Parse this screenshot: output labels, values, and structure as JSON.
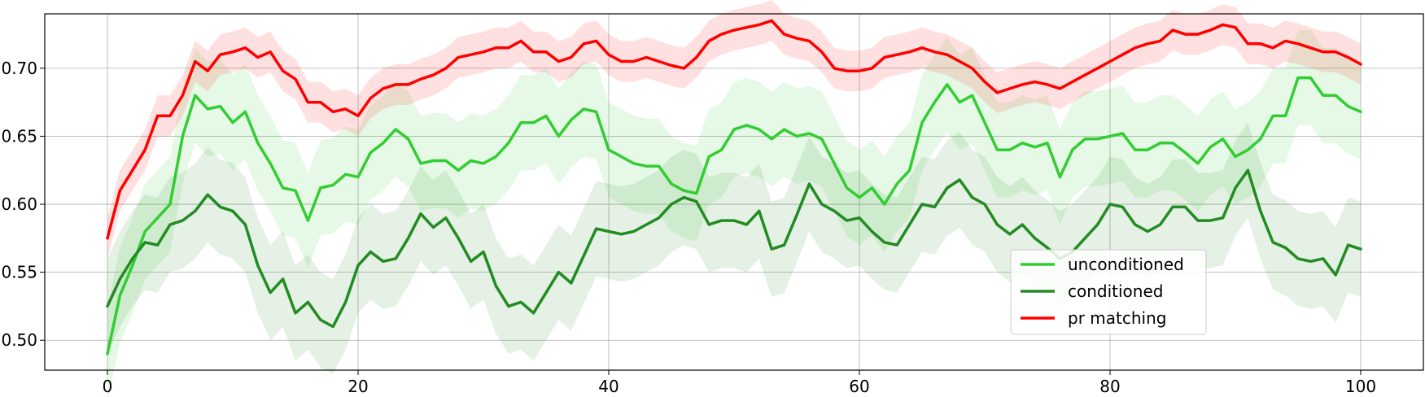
{
  "chart_data": {
    "type": "line",
    "title": "",
    "xlabel": "",
    "ylabel": "",
    "xlim": [
      -5,
      105
    ],
    "ylim": [
      0.478,
      0.74
    ],
    "grid": true,
    "legend_position": "lower-right",
    "xticks": [
      0,
      20,
      40,
      60,
      80,
      100
    ],
    "yticks": [
      0.5,
      0.55,
      0.6,
      0.65,
      0.7
    ],
    "xtick_labels": [
      "0",
      "20",
      "40",
      "60",
      "80",
      "100"
    ],
    "ytick_labels": [
      "0.50",
      "0.55",
      "0.60",
      "0.65",
      "0.70"
    ],
    "series": [
      {
        "name": "unconditioned",
        "color": "#32cd32",
        "band_width": 0.035,
        "points": [
          [
            0,
            0.49
          ],
          [
            1,
            0.533
          ],
          [
            2,
            0.555
          ],
          [
            3,
            0.58
          ],
          [
            4,
            0.59
          ],
          [
            5,
            0.6
          ],
          [
            6,
            0.65
          ],
          [
            7,
            0.68
          ],
          [
            8,
            0.67
          ],
          [
            9,
            0.672
          ],
          [
            10,
            0.66
          ],
          [
            11,
            0.668
          ],
          [
            12,
            0.645
          ],
          [
            13,
            0.63
          ],
          [
            14,
            0.612
          ],
          [
            15,
            0.61
          ],
          [
            16,
            0.588
          ],
          [
            17,
            0.612
          ],
          [
            18,
            0.614
          ],
          [
            19,
            0.622
          ],
          [
            20,
            0.62
          ],
          [
            21,
            0.638
          ],
          [
            22,
            0.645
          ],
          [
            23,
            0.655
          ],
          [
            24,
            0.648
          ],
          [
            25,
            0.63
          ],
          [
            26,
            0.632
          ],
          [
            27,
            0.632
          ],
          [
            28,
            0.625
          ],
          [
            29,
            0.632
          ],
          [
            30,
            0.63
          ],
          [
            31,
            0.635
          ],
          [
            32,
            0.645
          ],
          [
            33,
            0.66
          ],
          [
            34,
            0.66
          ],
          [
            35,
            0.665
          ],
          [
            36,
            0.65
          ],
          [
            37,
            0.662
          ],
          [
            38,
            0.67
          ],
          [
            39,
            0.668
          ],
          [
            40,
            0.64
          ],
          [
            41,
            0.635
          ],
          [
            42,
            0.63
          ],
          [
            43,
            0.628
          ],
          [
            44,
            0.628
          ],
          [
            45,
            0.615
          ],
          [
            46,
            0.61
          ],
          [
            47,
            0.608
          ],
          [
            48,
            0.635
          ],
          [
            49,
            0.64
          ],
          [
            50,
            0.655
          ],
          [
            51,
            0.658
          ],
          [
            52,
            0.655
          ],
          [
            53,
            0.648
          ],
          [
            54,
            0.655
          ],
          [
            55,
            0.65
          ],
          [
            56,
            0.652
          ],
          [
            57,
            0.648
          ],
          [
            58,
            0.63
          ],
          [
            59,
            0.612
          ],
          [
            60,
            0.605
          ],
          [
            61,
            0.612
          ],
          [
            62,
            0.6
          ],
          [
            63,
            0.615
          ],
          [
            64,
            0.625
          ],
          [
            65,
            0.66
          ],
          [
            66,
            0.675
          ],
          [
            67,
            0.688
          ],
          [
            68,
            0.675
          ],
          [
            69,
            0.68
          ],
          [
            70,
            0.66
          ],
          [
            71,
            0.64
          ],
          [
            72,
            0.64
          ],
          [
            73,
            0.645
          ],
          [
            74,
            0.642
          ],
          [
            75,
            0.645
          ],
          [
            76,
            0.62
          ],
          [
            77,
            0.64
          ],
          [
            78,
            0.648
          ],
          [
            79,
            0.648
          ],
          [
            80,
            0.65
          ],
          [
            81,
            0.652
          ],
          [
            82,
            0.64
          ],
          [
            83,
            0.64
          ],
          [
            84,
            0.645
          ],
          [
            85,
            0.645
          ],
          [
            86,
            0.638
          ],
          [
            87,
            0.63
          ],
          [
            88,
            0.642
          ],
          [
            89,
            0.648
          ],
          [
            90,
            0.635
          ],
          [
            91,
            0.64
          ],
          [
            92,
            0.648
          ],
          [
            93,
            0.665
          ],
          [
            94,
            0.665
          ],
          [
            95,
            0.693
          ],
          [
            96,
            0.693
          ],
          [
            97,
            0.68
          ],
          [
            98,
            0.68
          ],
          [
            99,
            0.672
          ],
          [
            100,
            0.668
          ]
        ]
      },
      {
        "name": "conditioned",
        "color": "#228b22",
        "band_width": 0.035,
        "points": [
          [
            0,
            0.525
          ],
          [
            1,
            0.545
          ],
          [
            2,
            0.56
          ],
          [
            3,
            0.572
          ],
          [
            4,
            0.57
          ],
          [
            5,
            0.585
          ],
          [
            6,
            0.588
          ],
          [
            7,
            0.595
          ],
          [
            8,
            0.607
          ],
          [
            9,
            0.598
          ],
          [
            10,
            0.595
          ],
          [
            11,
            0.585
          ],
          [
            12,
            0.555
          ],
          [
            13,
            0.535
          ],
          [
            14,
            0.545
          ],
          [
            15,
            0.52
          ],
          [
            16,
            0.528
          ],
          [
            17,
            0.515
          ],
          [
            18,
            0.51
          ],
          [
            19,
            0.528
          ],
          [
            20,
            0.555
          ],
          [
            21,
            0.565
          ],
          [
            22,
            0.558
          ],
          [
            23,
            0.56
          ],
          [
            24,
            0.575
          ],
          [
            25,
            0.593
          ],
          [
            26,
            0.583
          ],
          [
            27,
            0.59
          ],
          [
            28,
            0.575
          ],
          [
            29,
            0.558
          ],
          [
            30,
            0.565
          ],
          [
            31,
            0.54
          ],
          [
            32,
            0.525
          ],
          [
            33,
            0.528
          ],
          [
            34,
            0.52
          ],
          [
            35,
            0.535
          ],
          [
            36,
            0.55
          ],
          [
            37,
            0.542
          ],
          [
            38,
            0.562
          ],
          [
            39,
            0.582
          ],
          [
            40,
            0.58
          ],
          [
            41,
            0.578
          ],
          [
            42,
            0.58
          ],
          [
            43,
            0.585
          ],
          [
            44,
            0.59
          ],
          [
            45,
            0.6
          ],
          [
            46,
            0.605
          ],
          [
            47,
            0.602
          ],
          [
            48,
            0.585
          ],
          [
            49,
            0.588
          ],
          [
            50,
            0.588
          ],
          [
            51,
            0.585
          ],
          [
            52,
            0.595
          ],
          [
            53,
            0.567
          ],
          [
            54,
            0.57
          ],
          [
            55,
            0.592
          ],
          [
            56,
            0.615
          ],
          [
            57,
            0.6
          ],
          [
            58,
            0.595
          ],
          [
            59,
            0.588
          ],
          [
            60,
            0.59
          ],
          [
            61,
            0.58
          ],
          [
            62,
            0.572
          ],
          [
            63,
            0.57
          ],
          [
            64,
            0.585
          ],
          [
            65,
            0.6
          ],
          [
            66,
            0.598
          ],
          [
            67,
            0.612
          ],
          [
            68,
            0.618
          ],
          [
            69,
            0.605
          ],
          [
            70,
            0.6
          ],
          [
            71,
            0.585
          ],
          [
            72,
            0.578
          ],
          [
            73,
            0.585
          ],
          [
            74,
            0.575
          ],
          [
            75,
            0.568
          ],
          [
            76,
            0.56
          ],
          [
            77,
            0.565
          ],
          [
            78,
            0.575
          ],
          [
            79,
            0.585
          ],
          [
            80,
            0.6
          ],
          [
            81,
            0.598
          ],
          [
            82,
            0.585
          ],
          [
            83,
            0.58
          ],
          [
            84,
            0.585
          ],
          [
            85,
            0.598
          ],
          [
            86,
            0.598
          ],
          [
            87,
            0.588
          ],
          [
            88,
            0.588
          ],
          [
            89,
            0.59
          ],
          [
            90,
            0.612
          ],
          [
            91,
            0.625
          ],
          [
            92,
            0.595
          ],
          [
            93,
            0.572
          ],
          [
            94,
            0.568
          ],
          [
            95,
            0.56
          ],
          [
            96,
            0.558
          ],
          [
            97,
            0.56
          ],
          [
            98,
            0.548
          ],
          [
            99,
            0.57
          ],
          [
            100,
            0.567
          ]
        ]
      },
      {
        "name": "pr matching",
        "color": "#ff0000",
        "band_width": 0.015,
        "points": [
          [
            0,
            0.575
          ],
          [
            1,
            0.61
          ],
          [
            2,
            0.625
          ],
          [
            3,
            0.64
          ],
          [
            4,
            0.665
          ],
          [
            5,
            0.665
          ],
          [
            6,
            0.68
          ],
          [
            7,
            0.705
          ],
          [
            8,
            0.698
          ],
          [
            9,
            0.71
          ],
          [
            10,
            0.712
          ],
          [
            11,
            0.715
          ],
          [
            12,
            0.708
          ],
          [
            13,
            0.712
          ],
          [
            14,
            0.698
          ],
          [
            15,
            0.692
          ],
          [
            16,
            0.675
          ],
          [
            17,
            0.675
          ],
          [
            18,
            0.668
          ],
          [
            19,
            0.67
          ],
          [
            20,
            0.665
          ],
          [
            21,
            0.678
          ],
          [
            22,
            0.685
          ],
          [
            23,
            0.688
          ],
          [
            24,
            0.688
          ],
          [
            25,
            0.692
          ],
          [
            26,
            0.695
          ],
          [
            27,
            0.7
          ],
          [
            28,
            0.708
          ],
          [
            29,
            0.71
          ],
          [
            30,
            0.712
          ],
          [
            31,
            0.715
          ],
          [
            32,
            0.715
          ],
          [
            33,
            0.72
          ],
          [
            34,
            0.712
          ],
          [
            35,
            0.712
          ],
          [
            36,
            0.705
          ],
          [
            37,
            0.708
          ],
          [
            38,
            0.718
          ],
          [
            39,
            0.72
          ],
          [
            40,
            0.71
          ],
          [
            41,
            0.705
          ],
          [
            42,
            0.705
          ],
          [
            43,
            0.708
          ],
          [
            44,
            0.705
          ],
          [
            45,
            0.702
          ],
          [
            46,
            0.7
          ],
          [
            47,
            0.708
          ],
          [
            48,
            0.72
          ],
          [
            49,
            0.725
          ],
          [
            50,
            0.728
          ],
          [
            51,
            0.73
          ],
          [
            52,
            0.732
          ],
          [
            53,
            0.735
          ],
          [
            54,
            0.725
          ],
          [
            55,
            0.722
          ],
          [
            56,
            0.72
          ],
          [
            57,
            0.712
          ],
          [
            58,
            0.7
          ],
          [
            59,
            0.698
          ],
          [
            60,
            0.698
          ],
          [
            61,
            0.7
          ],
          [
            62,
            0.708
          ],
          [
            63,
            0.71
          ],
          [
            64,
            0.712
          ],
          [
            65,
            0.715
          ],
          [
            66,
            0.712
          ],
          [
            67,
            0.71
          ],
          [
            68,
            0.705
          ],
          [
            69,
            0.7
          ],
          [
            70,
            0.69
          ],
          [
            71,
            0.682
          ],
          [
            72,
            0.685
          ],
          [
            73,
            0.688
          ],
          [
            74,
            0.69
          ],
          [
            75,
            0.688
          ],
          [
            76,
            0.685
          ],
          [
            77,
            0.69
          ],
          [
            78,
            0.695
          ],
          [
            79,
            0.7
          ],
          [
            80,
            0.705
          ],
          [
            81,
            0.71
          ],
          [
            82,
            0.715
          ],
          [
            83,
            0.718
          ],
          [
            84,
            0.72
          ],
          [
            85,
            0.728
          ],
          [
            86,
            0.725
          ],
          [
            87,
            0.725
          ],
          [
            88,
            0.728
          ],
          [
            89,
            0.732
          ],
          [
            90,
            0.73
          ],
          [
            91,
            0.718
          ],
          [
            92,
            0.718
          ],
          [
            93,
            0.715
          ],
          [
            94,
            0.72
          ],
          [
            95,
            0.718
          ],
          [
            96,
            0.715
          ],
          [
            97,
            0.712
          ],
          [
            98,
            0.712
          ],
          [
            99,
            0.708
          ],
          [
            100,
            0.703
          ]
        ]
      }
    ]
  }
}
